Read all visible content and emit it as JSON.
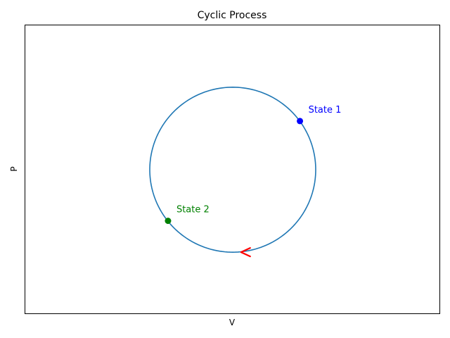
{
  "chart_data": {
    "type": "line",
    "title": "Cyclic Process",
    "xlabel": "V",
    "ylabel": "P",
    "xlim": [
      -2.5,
      2.5
    ],
    "ylim": [
      -1.75,
      1.75
    ],
    "grid": false,
    "ticks_visible": false,
    "series": [
      {
        "shape": "circle",
        "center": [
          0,
          0
        ],
        "radius": 1,
        "color": "#1f77b4"
      }
    ],
    "states": [
      {
        "label": "State 1",
        "x": 0.81,
        "y": 0.59,
        "color": "#0000ff"
      },
      {
        "label": "State 2",
        "x": -0.78,
        "y": -0.62,
        "color": "#008000"
      }
    ],
    "direction_arrow": {
      "x": 0.1,
      "y": -1.0,
      "pointing": "left",
      "color": "#ff0000"
    }
  }
}
